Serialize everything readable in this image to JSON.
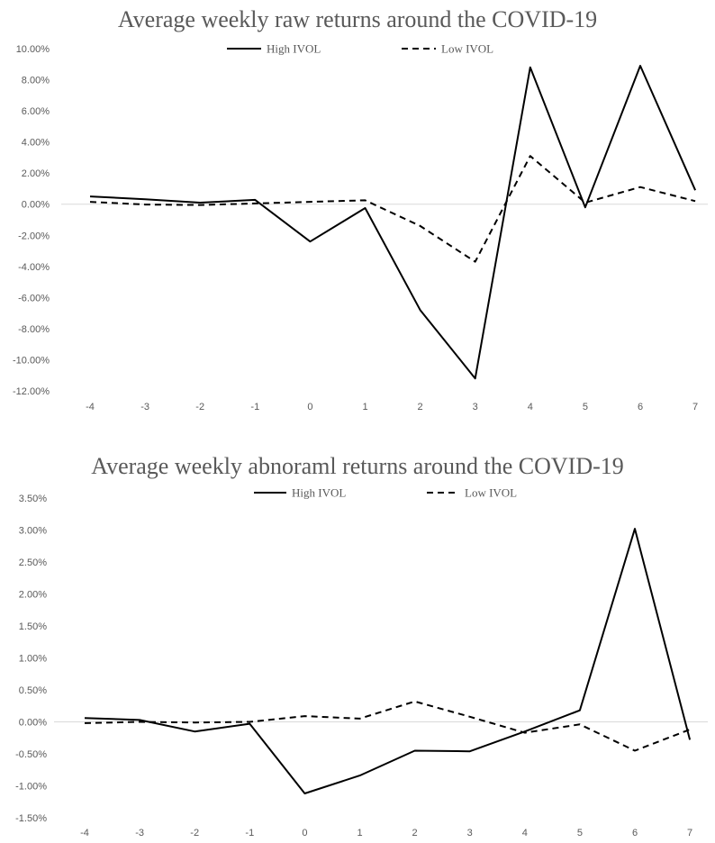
{
  "chart_data": [
    {
      "type": "line",
      "title": "Average weekly raw returns around the COVID-19",
      "xlabel": "",
      "ylabel": "",
      "categories": [
        "-4",
        "-3",
        "-2",
        "-1",
        "0",
        "1",
        "2",
        "3",
        "4",
        "5",
        "6",
        "7"
      ],
      "ylim": [
        -0.12,
        0.1
      ],
      "yticks": [
        "10.00%",
        "8.00%",
        "6.00%",
        "4.00%",
        "2.00%",
        "0.00%",
        "-2.00%",
        "-4.00%",
        "-6.00%",
        "-8.00%",
        "-10.00%",
        "-12.00%"
      ],
      "ytick_values": [
        0.1,
        0.08,
        0.06,
        0.04,
        0.02,
        0.0,
        -0.02,
        -0.04,
        -0.06,
        -0.08,
        -0.1,
        -0.12
      ],
      "legend_position": "top",
      "grid": false,
      "series": [
        {
          "name": "High IVOL",
          "style": "solid",
          "color": "#000000",
          "values": [
            0.005,
            0.0032,
            0.001,
            0.0028,
            -0.024,
            -0.0025,
            -0.068,
            -0.112,
            0.088,
            -0.002,
            0.089,
            0.009
          ]
        },
        {
          "name": "Low IVOL",
          "style": "dashed",
          "color": "#000000",
          "values": [
            0.0015,
            -0.0002,
            -0.0005,
            0.0005,
            0.0015,
            0.0025,
            -0.014,
            -0.037,
            0.031,
            0.001,
            0.011,
            0.002
          ]
        }
      ]
    },
    {
      "type": "line",
      "title": "Average weekly abnoraml returns around the COVID-19",
      "xlabel": "",
      "ylabel": "",
      "categories": [
        "-4",
        "-3",
        "-2",
        "-1",
        "0",
        "1",
        "2",
        "3",
        "4",
        "5",
        "6",
        "7"
      ],
      "ylim": [
        -0.015,
        0.035
      ],
      "yticks": [
        "3.50%",
        "3.00%",
        "2.50%",
        "2.00%",
        "1.50%",
        "1.00%",
        "0.50%",
        "0.00%",
        "-0.50%",
        "-1.00%",
        "-1.50%"
      ],
      "ytick_values": [
        0.035,
        0.03,
        0.025,
        0.02,
        0.015,
        0.01,
        0.005,
        0.0,
        -0.005,
        -0.01,
        -0.015
      ],
      "legend_position": "top",
      "grid": false,
      "series": [
        {
          "name": "High IVOL",
          "style": "solid",
          "color": "#000000",
          "values": [
            0.0006,
            0.0003,
            -0.0015,
            -0.0003,
            -0.0112,
            -0.0084,
            -0.0045,
            -0.0046,
            -0.0015,
            0.0018,
            0.0302,
            -0.0028
          ]
        },
        {
          "name": "Low IVOL",
          "style": "dashed",
          "color": "#000000",
          "values": [
            -0.0002,
            0.0,
            -0.0001,
            0.0,
            0.0009,
            0.0005,
            0.0032,
            0.0008,
            -0.0017,
            -0.0004,
            -0.0045,
            -0.0012
          ]
        }
      ]
    }
  ]
}
